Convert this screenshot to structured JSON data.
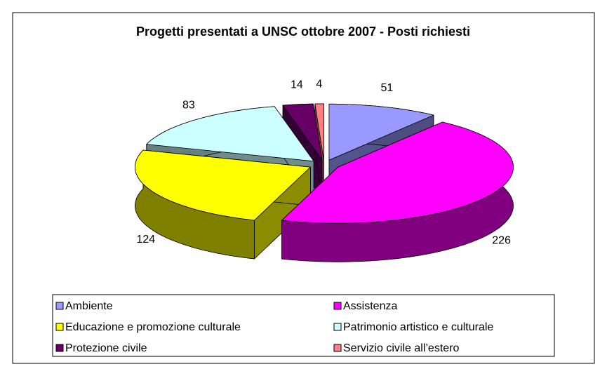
{
  "chart_data": {
    "type": "pie3d",
    "title": "Progetti presentati a UNSC ottobre 2007 - Posti richiesti",
    "categories": [
      "Ambiente",
      "Assistenza",
      "Educazione e promozione culturale",
      "Patrimonio artistico e culturale",
      "Protezione civile",
      "Servizio civile all’estero"
    ],
    "values": [
      51,
      226,
      124,
      83,
      14,
      4
    ],
    "colors": [
      "#9999ff",
      "#ff00ff",
      "#ffff00",
      "#ccffff",
      "#660066",
      "#ff8080"
    ]
  }
}
